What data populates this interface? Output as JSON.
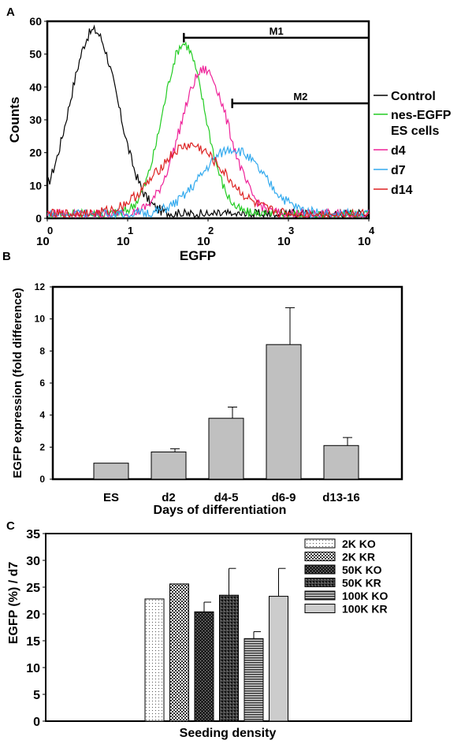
{
  "chart_data": [
    {
      "panel_label": "A",
      "type": "line",
      "xlabel": "EGFP",
      "ylabel": "Counts",
      "xscale": "log",
      "xlim": [
        1,
        10000
      ],
      "ylim": [
        0,
        60
      ],
      "x_tick_bases": [
        "10",
        "10",
        "10",
        "10",
        "10"
      ],
      "x_tick_exponents": [
        "0",
        "1",
        "2",
        "3",
        "4"
      ],
      "y_ticks": [
        "0",
        "10",
        "20",
        "30",
        "40",
        "50",
        "60"
      ],
      "markers": [
        {
          "label": "M1",
          "x_start": 50,
          "x_end": 10000,
          "y": 55
        },
        {
          "label": "M2",
          "x_start": 200,
          "x_end": 10000,
          "y": 35
        }
      ],
      "legend": [
        {
          "label": "Control",
          "color": "#000000"
        },
        {
          "label": "nes-EGFP",
          "color": "#22cc22"
        },
        {
          "label": "ES cells",
          "color": ""
        },
        {
          "label": "d4",
          "color": "#ee2299"
        },
        {
          "label": "d7",
          "color": "#33aaee"
        },
        {
          "label": "d14",
          "color": "#dd2222"
        }
      ],
      "series": [
        {
          "name": "Control",
          "color": "#000000",
          "peak_x": 3.8,
          "peak_y": 56,
          "width": 0.3
        },
        {
          "name": "nes-EGFP ES cells",
          "color": "#22cc22",
          "peak_x": 50,
          "peak_y": 52,
          "width": 0.26
        },
        {
          "name": "d4",
          "color": "#ee2299",
          "peak_x": 90,
          "peak_y": 44,
          "width": 0.3
        },
        {
          "name": "d7",
          "color": "#33aaee",
          "peak_x": 200,
          "peak_y": 20,
          "width": 0.38
        },
        {
          "name": "d14",
          "color": "#dd2222",
          "peak_x": 60,
          "peak_y": 21,
          "width": 0.42
        }
      ]
    },
    {
      "panel_label": "B",
      "type": "bar",
      "xlabel": "Days of differentiation",
      "ylabel": "EGFP expression (fold difference)",
      "ylim": [
        0,
        12
      ],
      "y_ticks": [
        "0",
        "2",
        "4",
        "6",
        "8",
        "10",
        "12"
      ],
      "categories": [
        "ES",
        "d2",
        "d4-5",
        "d6-9",
        "d13-16"
      ],
      "values": [
        1.0,
        1.7,
        3.8,
        8.4,
        2.1
      ],
      "errors": [
        0,
        0.2,
        0.7,
        2.3,
        0.5
      ],
      "bar_color": "#c0c0c0"
    },
    {
      "panel_label": "C",
      "type": "bar",
      "xlabel": "Seeding density",
      "ylabel": "EGFP (%) / d7",
      "ylim": [
        0,
        35
      ],
      "y_ticks": [
        "0",
        "5",
        "10",
        "15",
        "20",
        "25",
        "30",
        "35"
      ],
      "series": [
        {
          "name": "2K KO",
          "value": 22.8,
          "error": 0,
          "pattern": "dots"
        },
        {
          "name": "2K KR",
          "value": 25.6,
          "error": 0,
          "pattern": "check"
        },
        {
          "name": "50K KO",
          "value": 20.4,
          "error": 1.8,
          "pattern": "dark-check"
        },
        {
          "name": "50K KR",
          "value": 23.5,
          "error": 5.0,
          "pattern": "dark-dots"
        },
        {
          "name": "100K KO",
          "value": 15.4,
          "error": 1.3,
          "pattern": "hstripes"
        },
        {
          "name": "100K KR",
          "value": 23.3,
          "error": 5.2,
          "pattern": "solid"
        }
      ]
    }
  ]
}
